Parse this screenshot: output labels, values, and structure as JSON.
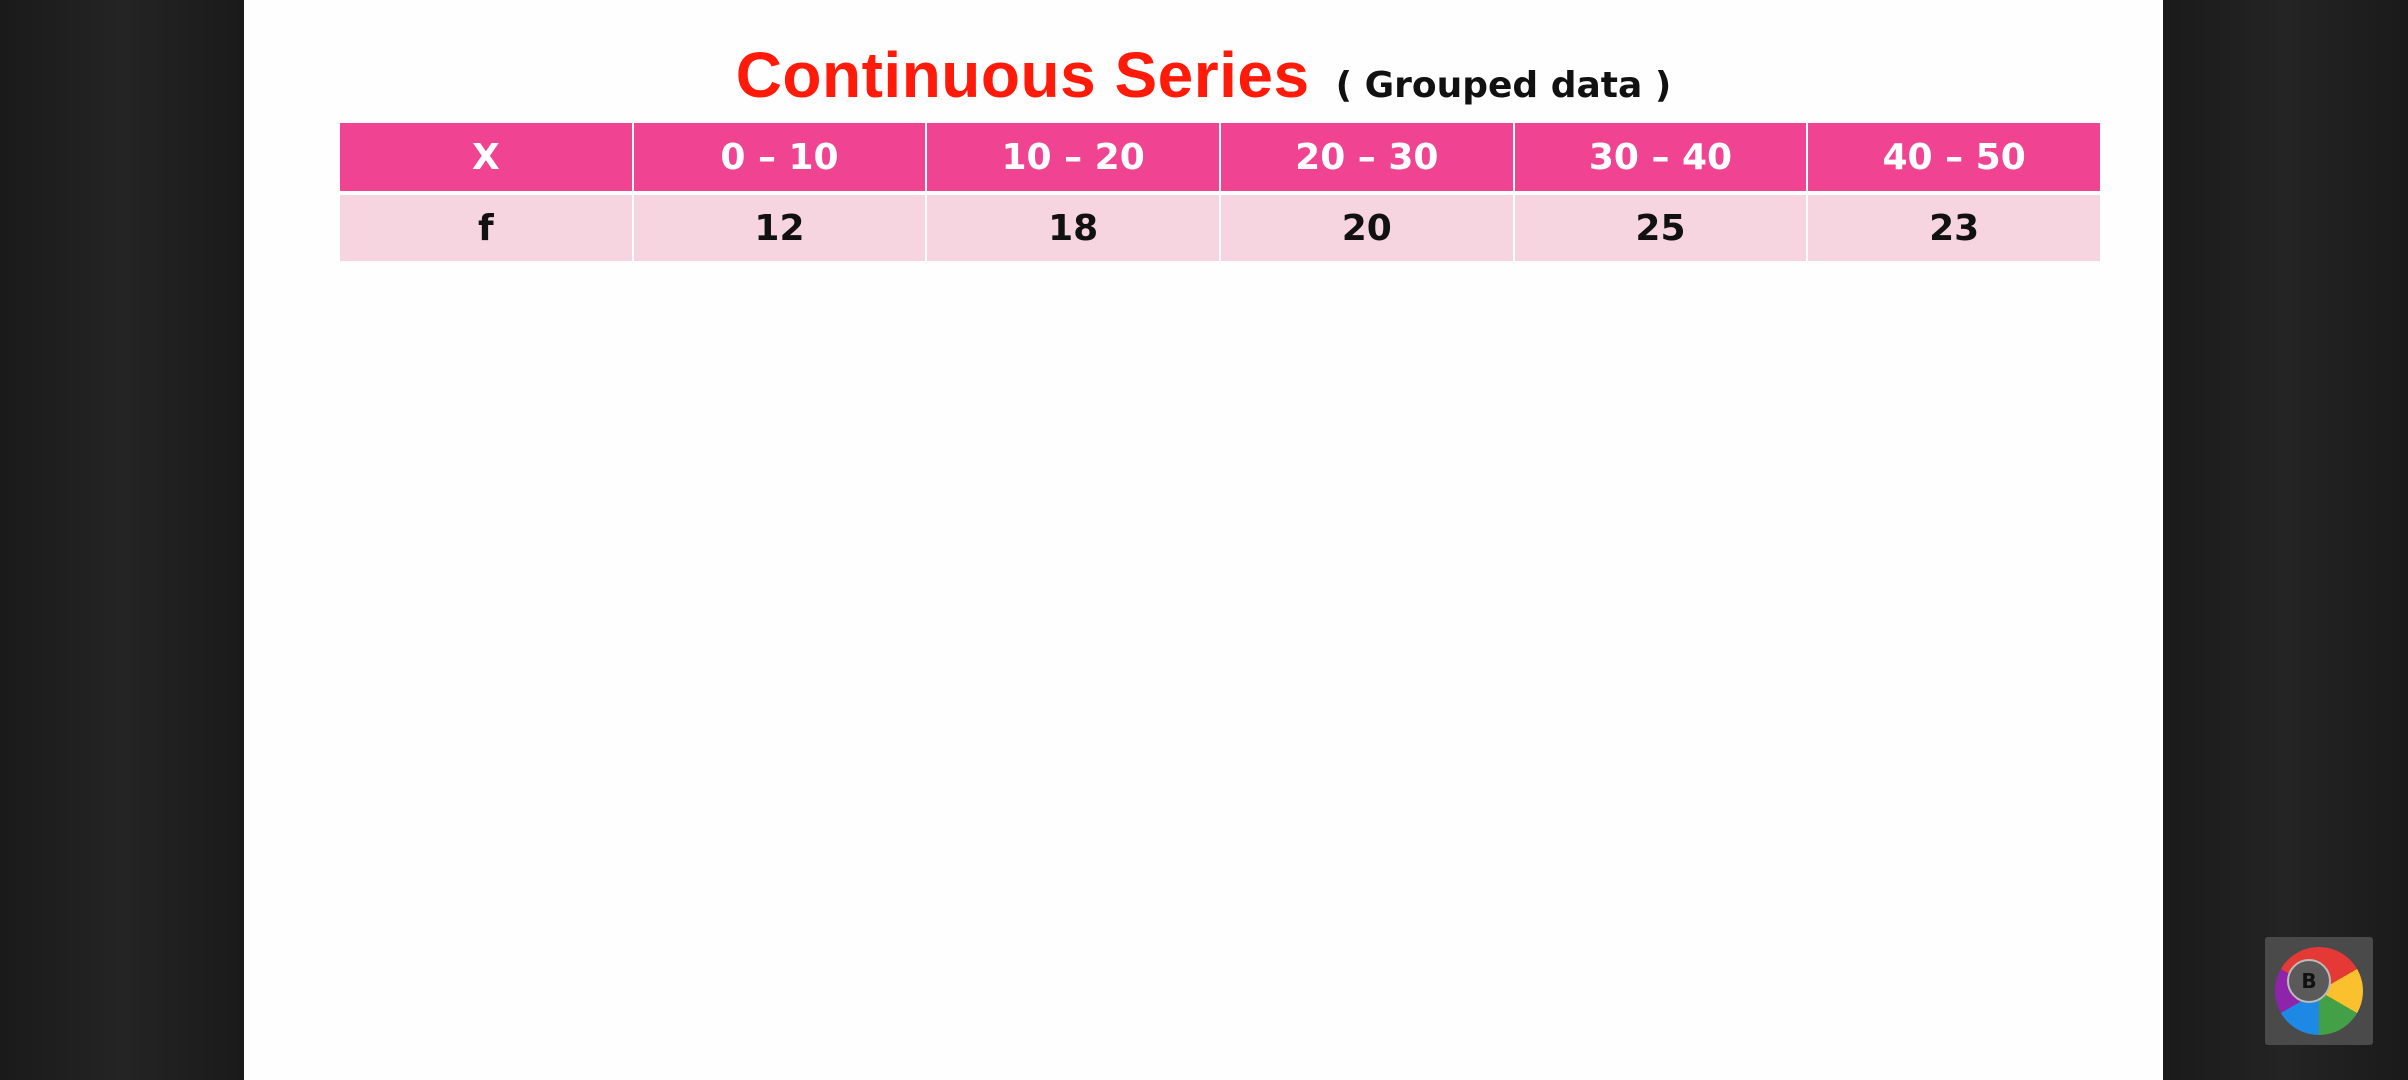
{
  "slide": {
    "title": "Continuous Series",
    "subtitle": "( Grouped data )"
  },
  "table": {
    "header": [
      "X",
      "0 – 10",
      "10 – 20",
      "20 – 30",
      "30 – 40",
      "40 – 50"
    ],
    "row": [
      "f",
      "12",
      "18",
      "20",
      "25",
      "23"
    ]
  },
  "colors": {
    "title": "#ff1a0a",
    "header_bg": "#f04492",
    "row_bg": "#f6d5e0"
  },
  "logo": {
    "letter": "B"
  }
}
